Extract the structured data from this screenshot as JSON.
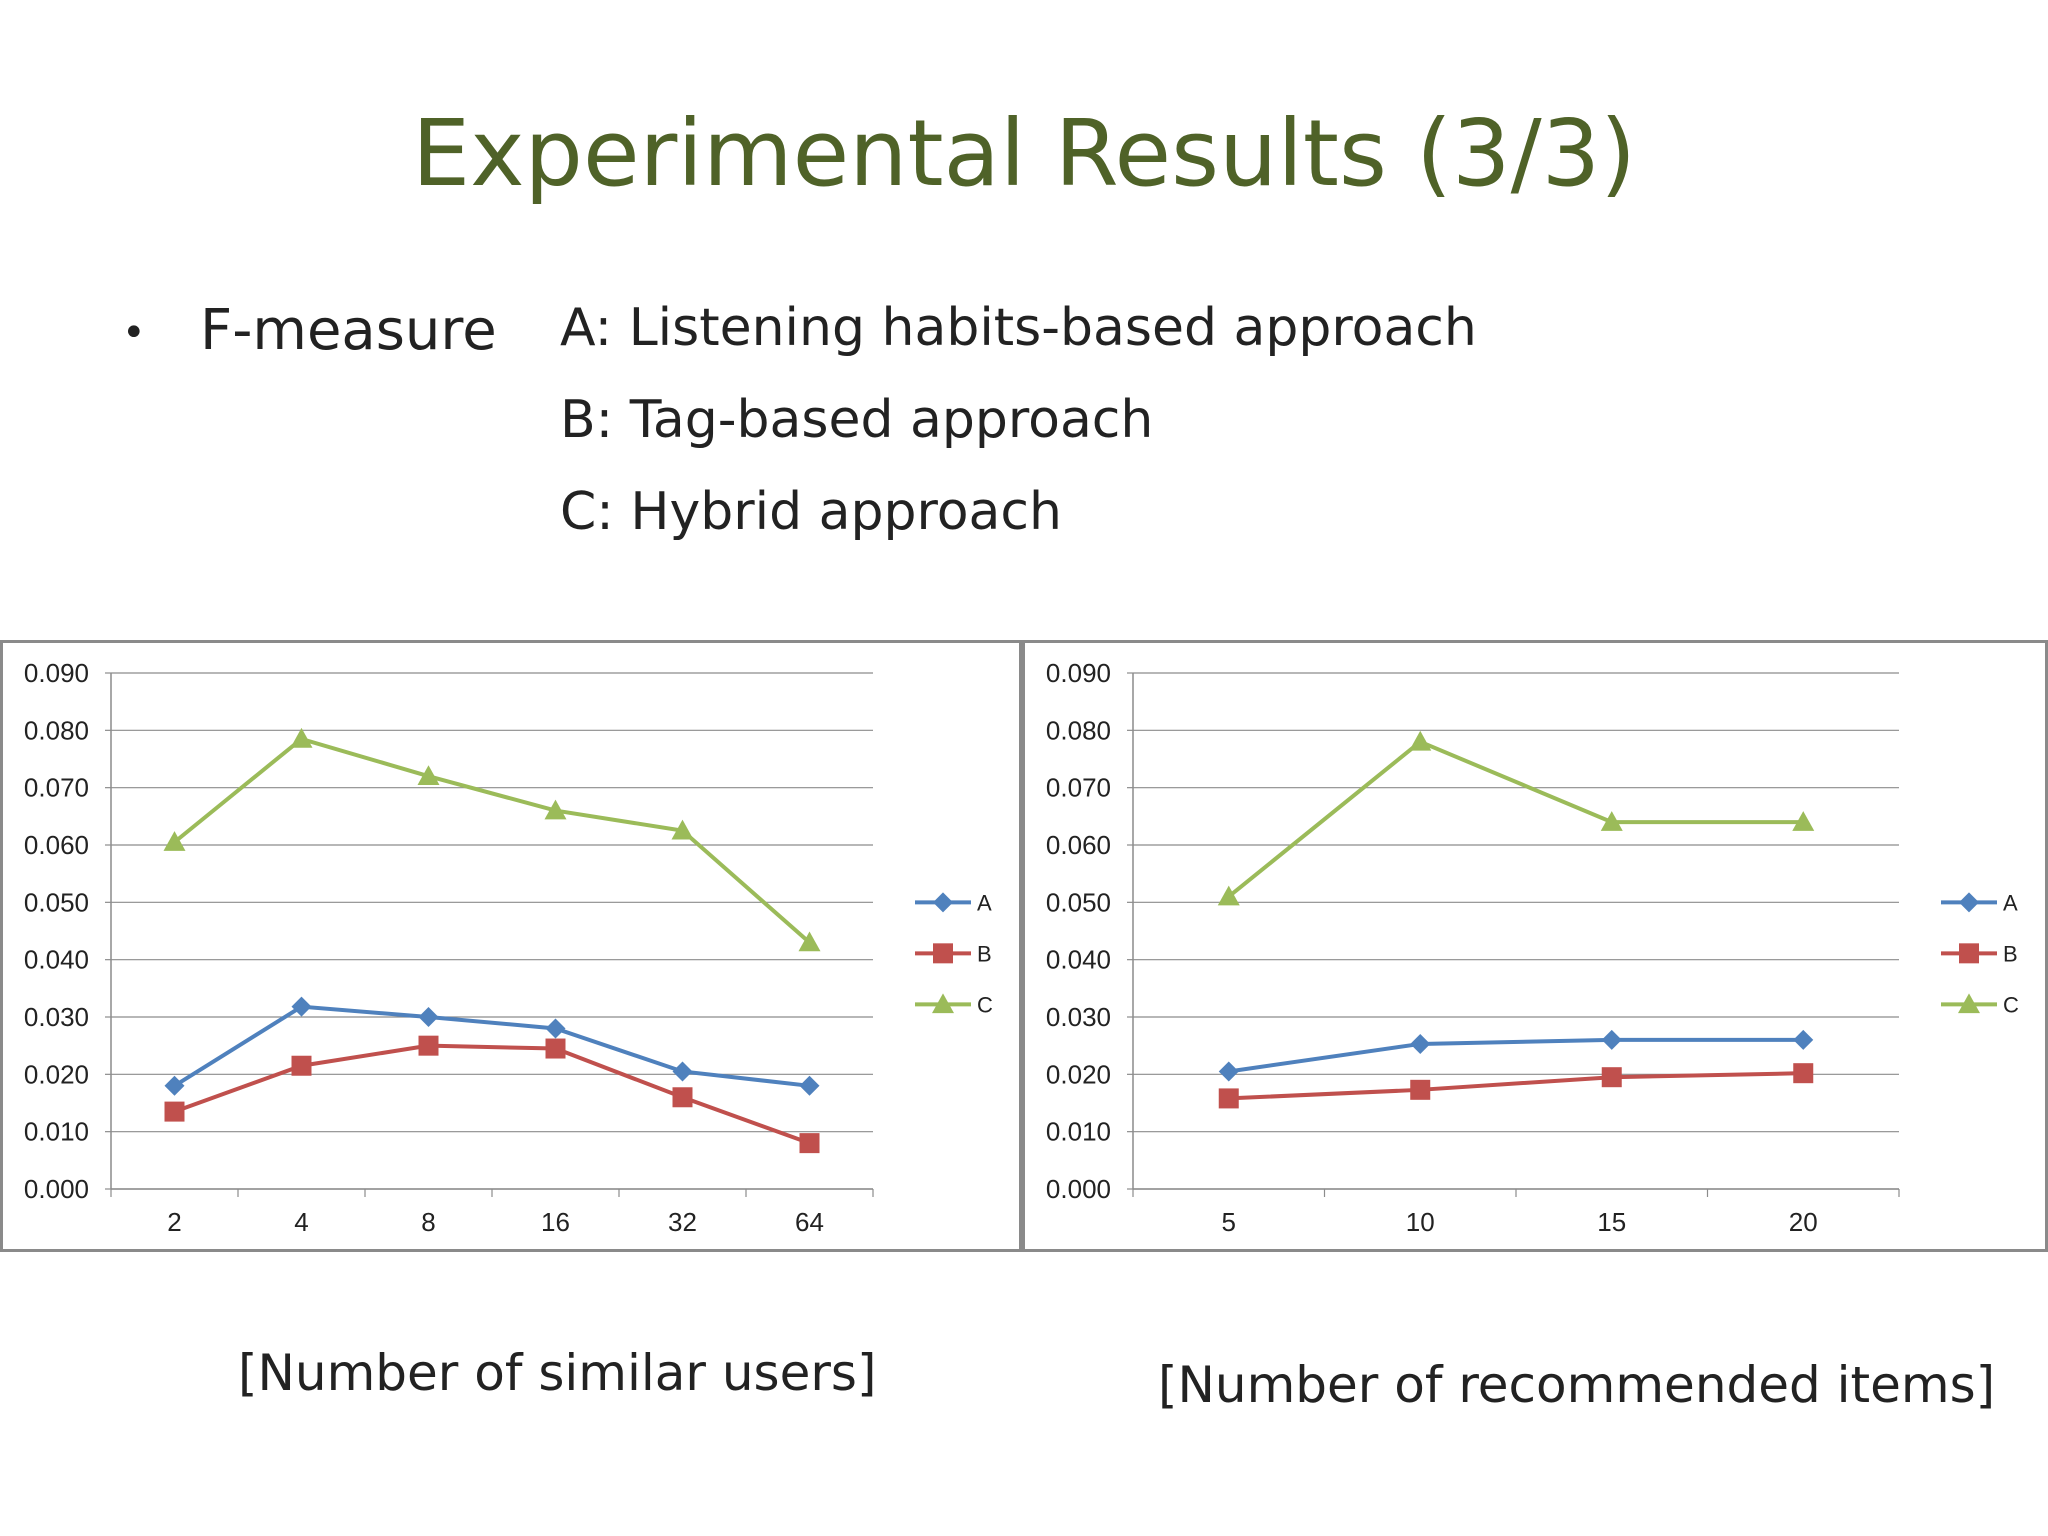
{
  "slide": {
    "title": "Experimental Results (3/3)",
    "bullet_symbol": "•",
    "bullet_label": "F-measure",
    "legend_lines": [
      "A: Listening habits-based approach",
      "B: Tag-based approach",
      "C: Hybrid approach"
    ],
    "captions": [
      "[Number of similar users]",
      "[Number of recommended items]"
    ]
  },
  "colors": {
    "title": "#4f6228",
    "A": "#4f81bd",
    "B": "#c0504d",
    "C": "#9bbb59"
  },
  "chart_data": [
    {
      "type": "line",
      "categories": [
        "2",
        "4",
        "8",
        "16",
        "32",
        "64"
      ],
      "ylim": [
        0,
        0.09
      ],
      "yticks": [
        "0.000",
        "0.010",
        "0.020",
        "0.030",
        "0.040",
        "0.050",
        "0.060",
        "0.070",
        "0.080",
        "0.090"
      ],
      "grid": true,
      "legend": "right",
      "series": [
        {
          "name": "A",
          "marker": "diamond",
          "values": [
            0.018,
            0.0318,
            0.03,
            0.028,
            0.0205,
            0.018
          ]
        },
        {
          "name": "B",
          "marker": "square",
          "values": [
            0.0135,
            0.0215,
            0.025,
            0.0245,
            0.016,
            0.008
          ]
        },
        {
          "name": "C",
          "marker": "triangle",
          "values": [
            0.0605,
            0.0785,
            0.072,
            0.066,
            0.0625,
            0.043
          ]
        }
      ]
    },
    {
      "type": "line",
      "categories": [
        "5",
        "10",
        "15",
        "20"
      ],
      "ylim": [
        0,
        0.09
      ],
      "yticks": [
        "0.000",
        "0.010",
        "0.020",
        "0.030",
        "0.040",
        "0.050",
        "0.060",
        "0.070",
        "0.080",
        "0.090"
      ],
      "grid": true,
      "legend": "right",
      "series": [
        {
          "name": "A",
          "marker": "diamond",
          "values": [
            0.0205,
            0.0253,
            0.026,
            0.026
          ]
        },
        {
          "name": "B",
          "marker": "square",
          "values": [
            0.0158,
            0.0173,
            0.0195,
            0.0202
          ]
        },
        {
          "name": "C",
          "marker": "triangle",
          "values": [
            0.051,
            0.078,
            0.064,
            0.064
          ]
        }
      ]
    }
  ]
}
